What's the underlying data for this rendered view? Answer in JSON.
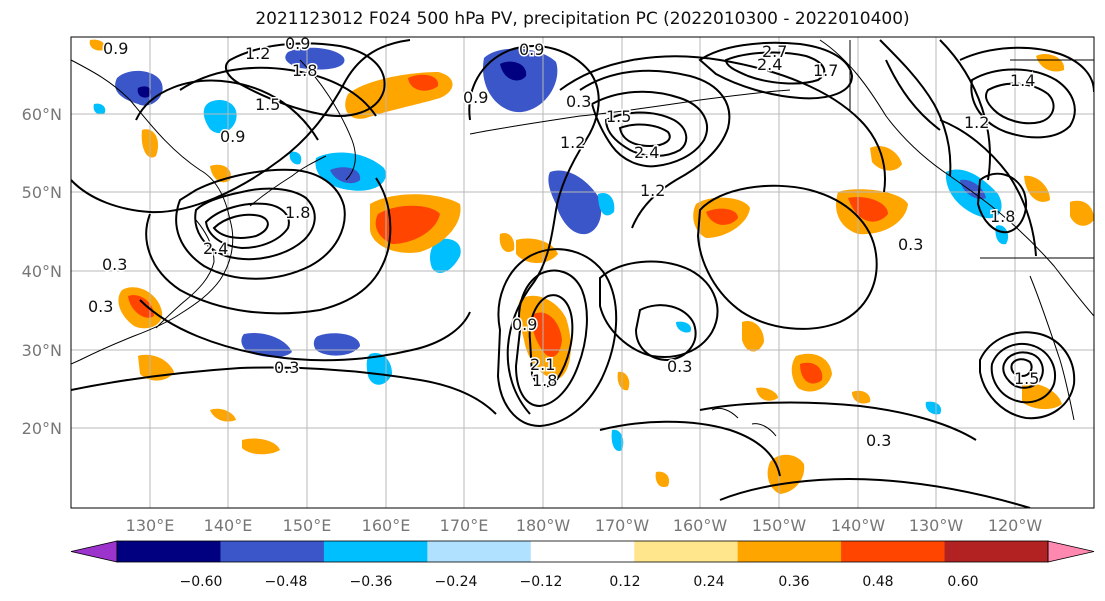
{
  "title": "2021123012 F024 500 hPa PV, precipitation PC (2022010300 - 2022010400)",
  "latitude_labels": [
    "60°N",
    "50°N",
    "40°N",
    "30°N",
    "20°N"
  ],
  "longitude_labels": [
    "130°E",
    "140°E",
    "150°E",
    "160°E",
    "170°E",
    "180°W",
    "170°W",
    "160°W",
    "150°W",
    "140°W",
    "130°W",
    "120°W"
  ],
  "colorbar": {
    "ticks": [
      "−0.60",
      "−0.48",
      "−0.36",
      "−0.24",
      "−0.12",
      "0.12",
      "0.24",
      "0.36",
      "0.48",
      "0.60"
    ],
    "colors": [
      "#9b33cc",
      "#000080",
      "#3a56c8",
      "#00bfff",
      "#b0e2ff",
      "#ffffff",
      "#ffe68c",
      "#ffa500",
      "#ff4500",
      "#b22222",
      "#ff88b0"
    ]
  },
  "contour_labels": [
    "0.9",
    "1.2",
    "0.9",
    "1.8",
    "0.9",
    "0.9",
    "0.3",
    "2.7",
    "2.4",
    "1.7",
    "1.5",
    "0.9",
    "1.5",
    "1.2",
    "2.4",
    "1.8",
    "2.4",
    "0.3",
    "0.3",
    "0.3",
    "0.9",
    "2.1",
    "1.8",
    "1.2",
    "0.3",
    "0.3",
    "0.3",
    "1.2",
    "1.4",
    "1.5",
    "1.8"
  ],
  "colors": {
    "contour": "#000000",
    "grid": "#b8b8b8",
    "coast": "#000000"
  }
}
